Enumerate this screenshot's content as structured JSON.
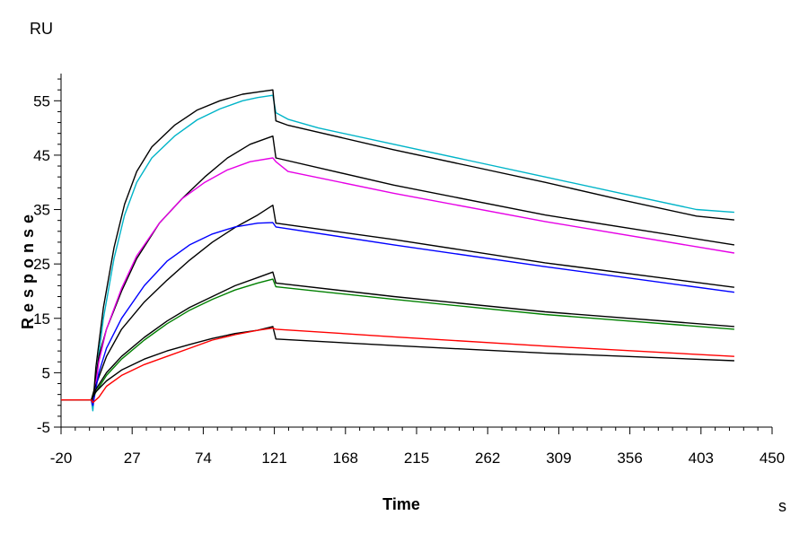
{
  "chart_data": {
    "type": "line",
    "xlabel": "Time",
    "ylabel": "Response",
    "x_unit": "s",
    "y_unit": "RU",
    "xlim": [
      -20,
      450
    ],
    "ylim": [
      -5,
      60
    ],
    "xticks": [
      -20,
      27,
      74,
      121,
      168,
      215,
      262,
      309,
      356,
      403,
      450
    ],
    "yticks": [
      -5,
      5,
      15,
      25,
      35,
      45,
      55
    ],
    "grid": false,
    "legend": "none",
    "series": [
      {
        "color": "#00b4c8",
        "points": [
          [
            -20,
            0
          ],
          [
            0,
            0
          ],
          [
            1,
            -2
          ],
          [
            3,
            4
          ],
          [
            8,
            15
          ],
          [
            15,
            26
          ],
          [
            22,
            34
          ],
          [
            30,
            40
          ],
          [
            40,
            44.5
          ],
          [
            55,
            48.5
          ],
          [
            70,
            51.5
          ],
          [
            85,
            53.5
          ],
          [
            100,
            55
          ],
          [
            110,
            55.6
          ],
          [
            120,
            56
          ],
          [
            122,
            52.8
          ],
          [
            130,
            51.6
          ],
          [
            150,
            50
          ],
          [
            200,
            47
          ],
          [
            250,
            44
          ],
          [
            300,
            41
          ],
          [
            350,
            38
          ],
          [
            400,
            35
          ],
          [
            425,
            34.5
          ]
        ]
      },
      {
        "color": "#000000",
        "points": [
          [
            -20,
            0
          ],
          [
            0,
            0
          ],
          [
            1,
            -1
          ],
          [
            3,
            6
          ],
          [
            8,
            17
          ],
          [
            15,
            28
          ],
          [
            22,
            36
          ],
          [
            30,
            42
          ],
          [
            40,
            46.5
          ],
          [
            55,
            50.5
          ],
          [
            70,
            53.3
          ],
          [
            85,
            55
          ],
          [
            100,
            56.2
          ],
          [
            110,
            56.6
          ],
          [
            120,
            57
          ],
          [
            122,
            51.3
          ],
          [
            130,
            50.5
          ],
          [
            200,
            46
          ],
          [
            250,
            43
          ],
          [
            300,
            40
          ],
          [
            350,
            36.8
          ],
          [
            400,
            33.8
          ],
          [
            425,
            33.1
          ]
        ]
      },
      {
        "color": "#000000",
        "points": [
          [
            -20,
            0
          ],
          [
            0,
            0
          ],
          [
            1,
            0
          ],
          [
            5,
            8
          ],
          [
            10,
            13
          ],
          [
            20,
            20
          ],
          [
            30,
            26
          ],
          [
            45,
            32.5
          ],
          [
            60,
            37
          ],
          [
            75,
            41
          ],
          [
            90,
            44.5
          ],
          [
            105,
            47
          ],
          [
            120,
            48.5
          ],
          [
            122,
            44.5
          ],
          [
            200,
            39.5
          ],
          [
            300,
            34
          ],
          [
            425,
            28.5
          ]
        ]
      },
      {
        "color": "#e600e6",
        "points": [
          [
            -20,
            0
          ],
          [
            0,
            0
          ],
          [
            1,
            -1
          ],
          [
            5,
            7
          ],
          [
            10,
            13
          ],
          [
            20,
            20.5
          ],
          [
            30,
            26.5
          ],
          [
            45,
            32.5
          ],
          [
            60,
            37
          ],
          [
            75,
            40
          ],
          [
            90,
            42.3
          ],
          [
            105,
            43.8
          ],
          [
            120,
            44.5
          ],
          [
            122,
            43.8
          ],
          [
            130,
            42
          ],
          [
            200,
            38
          ],
          [
            300,
            32.8
          ],
          [
            425,
            27
          ]
        ]
      },
      {
        "color": "#000000",
        "points": [
          [
            -20,
            0
          ],
          [
            0,
            0
          ],
          [
            2,
            2
          ],
          [
            10,
            8
          ],
          [
            20,
            13
          ],
          [
            35,
            18
          ],
          [
            50,
            22
          ],
          [
            65,
            25.7
          ],
          [
            80,
            29
          ],
          [
            95,
            31.7
          ],
          [
            110,
            34
          ],
          [
            120,
            35.8
          ],
          [
            122,
            32.5
          ],
          [
            200,
            29.5
          ],
          [
            300,
            25.2
          ],
          [
            425,
            20.7
          ]
        ]
      },
      {
        "color": "#0000ff",
        "points": [
          [
            -20,
            0
          ],
          [
            0,
            0
          ],
          [
            1,
            -1
          ],
          [
            5,
            5
          ],
          [
            10,
            9.5
          ],
          [
            20,
            15
          ],
          [
            35,
            21
          ],
          [
            50,
            25.5
          ],
          [
            65,
            28.5
          ],
          [
            80,
            30.5
          ],
          [
            95,
            31.8
          ],
          [
            110,
            32.5
          ],
          [
            120,
            32.6
          ],
          [
            122,
            31.8
          ],
          [
            200,
            28.5
          ],
          [
            300,
            24.5
          ],
          [
            425,
            19.8
          ]
        ]
      },
      {
        "color": "#000000",
        "points": [
          [
            -20,
            0
          ],
          [
            0,
            0
          ],
          [
            2,
            1.5
          ],
          [
            10,
            5
          ],
          [
            20,
            8
          ],
          [
            35,
            11.5
          ],
          [
            50,
            14.5
          ],
          [
            65,
            17
          ],
          [
            80,
            19
          ],
          [
            95,
            21
          ],
          [
            110,
            22.5
          ],
          [
            120,
            23.5
          ],
          [
            122,
            21.5
          ],
          [
            200,
            19
          ],
          [
            300,
            16.2
          ],
          [
            425,
            13.5
          ]
        ]
      },
      {
        "color": "#008000",
        "points": [
          [
            -20,
            0
          ],
          [
            0,
            0
          ],
          [
            2,
            1
          ],
          [
            10,
            4.5
          ],
          [
            20,
            7.5
          ],
          [
            35,
            11
          ],
          [
            50,
            14
          ],
          [
            65,
            16.5
          ],
          [
            80,
            18.5
          ],
          [
            95,
            20.2
          ],
          [
            110,
            21.5
          ],
          [
            120,
            22.2
          ],
          [
            122,
            20.8
          ],
          [
            200,
            18.5
          ],
          [
            300,
            15.7
          ],
          [
            425,
            13
          ]
        ]
      },
      {
        "color": "#000000",
        "points": [
          [
            -20,
            0
          ],
          [
            0,
            0
          ],
          [
            3,
            1.5
          ],
          [
            10,
            3.5
          ],
          [
            20,
            5.5
          ],
          [
            35,
            7.5
          ],
          [
            50,
            9
          ],
          [
            65,
            10.2
          ],
          [
            80,
            11.3
          ],
          [
            95,
            12.2
          ],
          [
            110,
            12.8
          ],
          [
            120,
            13.5
          ],
          [
            122,
            11.2
          ],
          [
            200,
            10
          ],
          [
            300,
            8.6
          ],
          [
            425,
            7.2
          ]
        ]
      },
      {
        "color": "#ff0000",
        "points": [
          [
            -20,
            0
          ],
          [
            0,
            0
          ],
          [
            1,
            -0.5
          ],
          [
            5,
            0.5
          ],
          [
            10,
            2.5
          ],
          [
            20,
            4.5
          ],
          [
            35,
            6.5
          ],
          [
            50,
            8
          ],
          [
            65,
            9.5
          ],
          [
            80,
            11
          ],
          [
            95,
            12
          ],
          [
            110,
            12.8
          ],
          [
            120,
            13.2
          ],
          [
            122,
            13
          ],
          [
            200,
            11.6
          ],
          [
            300,
            9.9
          ],
          [
            425,
            8
          ]
        ]
      }
    ]
  }
}
